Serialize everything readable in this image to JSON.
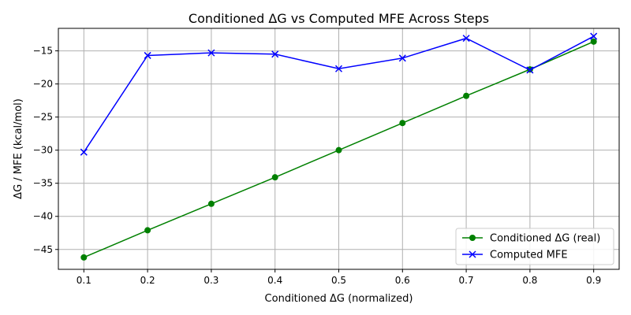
{
  "chart_data": {
    "type": "line",
    "title": "Conditioned ΔG vs Computed MFE Across Steps",
    "xlabel": "Conditioned ΔG (normalized)",
    "ylabel": "ΔG / MFE (kcal/mol)",
    "x": [
      0.1,
      0.2,
      0.3,
      0.4,
      0.5,
      0.6,
      0.7,
      0.8,
      0.9
    ],
    "x_ticks": [
      "0.1",
      "0.2",
      "0.3",
      "0.4",
      "0.5",
      "0.6",
      "0.7",
      "0.8",
      "0.9"
    ],
    "y_ticks": [
      -45,
      -40,
      -35,
      -30,
      -25,
      -20,
      -15
    ],
    "y_tick_labels": [
      "−45",
      "−40",
      "−35",
      "−30",
      "−25",
      "−20",
      "−15"
    ],
    "xlim": [
      0.06,
      0.94
    ],
    "ylim": [
      -48,
      -11.6
    ],
    "grid": true,
    "legend_position": "lower-right",
    "series": [
      {
        "name": "Conditioned ΔG (real)",
        "color": "#008000",
        "marker": "circle",
        "values": [
          -46.2,
          -42.1,
          -38.1,
          -34.1,
          -30.0,
          -25.9,
          -21.8,
          -17.8,
          -13.6
        ]
      },
      {
        "name": "Computed MFE",
        "color": "#0000ff",
        "marker": "x",
        "values": [
          -30.3,
          -15.7,
          -15.3,
          -15.5,
          -17.7,
          -16.1,
          -13.1,
          -17.9,
          -12.8
        ]
      }
    ]
  }
}
